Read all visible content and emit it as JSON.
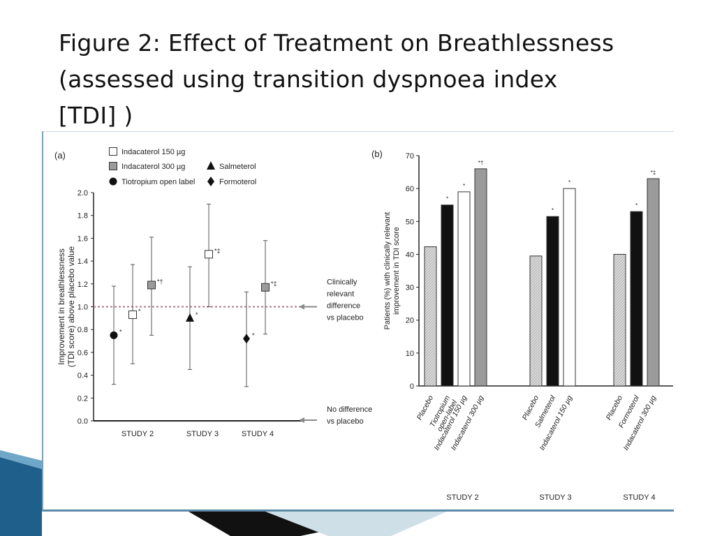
{
  "title_lines": [
    "Figure 2: Effect of Treatment on Breathlessness",
    "(assessed using transition dyspnoea index",
    "[TDI] )"
  ],
  "colors": {
    "open_marker": "#ffffff",
    "grey_marker": "#9b9b9b",
    "black": "#111111",
    "placebo_fill": "#d9d9d9",
    "reference_line": "#b07a8a",
    "arrow": "#8a8a8a",
    "accent_blue": "#1f5f8b"
  },
  "chart_data": [
    {
      "type": "scatter",
      "panel_label": "(a)",
      "ylabel": "Improvement in breathlessness (TDI score) above placebo value",
      "ylim": [
        0,
        2.0
      ],
      "yticks": [
        "2.0",
        "1.8",
        "1.6",
        "1.4",
        "1.2",
        "1.0",
        "0.8",
        "0.6",
        "0.4",
        "0.2",
        "0.0"
      ],
      "categories": [
        "STUDY 2",
        "STUDY 3",
        "STUDY 4"
      ],
      "legend": [
        {
          "label": "Indacaterol 150 µg",
          "marker": "open-square"
        },
        {
          "label": "Indacaterol 300 µg",
          "marker": "grey-square"
        },
        {
          "label": "Salmeterol",
          "marker": "triangle"
        },
        {
          "label": "Tiotropium open label",
          "marker": "circle"
        },
        {
          "label": "Formoterol",
          "marker": "diamond"
        }
      ],
      "points": [
        {
          "study": "STUDY 2",
          "series": "Tiotropium open label",
          "marker": "circle",
          "offset": -1,
          "value": 0.75,
          "low": 0.32,
          "high": 1.18,
          "annotation": "*"
        },
        {
          "study": "STUDY 2",
          "series": "Indacaterol 150 µg",
          "marker": "open-square",
          "offset": 0,
          "value": 0.93,
          "low": 0.5,
          "high": 1.37,
          "annotation": "*"
        },
        {
          "study": "STUDY 2",
          "series": "Indacaterol 300 µg",
          "marker": "grey-square",
          "offset": 1,
          "value": 1.19,
          "low": 0.75,
          "high": 1.61,
          "annotation": "*†"
        },
        {
          "study": "STUDY 3",
          "series": "Salmeterol",
          "marker": "triangle",
          "offset": -1,
          "value": 0.9,
          "low": 0.45,
          "high": 1.35,
          "annotation": "*"
        },
        {
          "study": "STUDY 3",
          "series": "Indacaterol 150 µg",
          "marker": "open-square",
          "offset": 0,
          "value": 1.46,
          "low": 1.0,
          "high": 1.9,
          "annotation": "*‡"
        },
        {
          "study": "STUDY 4",
          "series": "Formoterol",
          "marker": "diamond",
          "offset": -1,
          "value": 0.72,
          "low": 0.3,
          "high": 1.13,
          "annotation": "*"
        },
        {
          "study": "STUDY 4",
          "series": "Indacaterol 300 µg",
          "marker": "grey-square",
          "offset": 0,
          "value": 1.17,
          "low": 0.76,
          "high": 1.58,
          "annotation": "*‡"
        }
      ],
      "reference_lines": [
        {
          "value": 1.0,
          "label_lines": [
            "Clinically",
            "relevant",
            "difference",
            "vs placebo"
          ]
        },
        {
          "value": 0.0,
          "label_lines": [
            "No difference",
            "vs placebo"
          ]
        }
      ]
    },
    {
      "type": "bar",
      "panel_label": "(b)",
      "ylabel": "Patients (%) with clinically relevant improvement in TDI score",
      "ylim": [
        0,
        70
      ],
      "yticks": [
        "70",
        "60",
        "50",
        "40",
        "30",
        "20",
        "10",
        "0"
      ],
      "groups": [
        {
          "study": "STUDY 2",
          "bars": [
            {
              "label": "Placebo",
              "value": 42.3,
              "fill": "placebo",
              "annotation": ""
            },
            {
              "label": "Tiotropium open-label",
              "label_lines": [
                "Tiotropium",
                "open-label"
              ],
              "value": 55,
              "fill": "black",
              "annotation": "*"
            },
            {
              "label": "Indacaterol 150 µg",
              "value": 59,
              "fill": "white",
              "annotation": "*"
            },
            {
              "label": "Indacaterol 300 µg",
              "value": 66,
              "fill": "grey",
              "annotation": "*†"
            }
          ]
        },
        {
          "study": "STUDY 3",
          "bars": [
            {
              "label": "Placebo",
              "value": 39.5,
              "fill": "placebo",
              "annotation": ""
            },
            {
              "label": "Salmeterol",
              "value": 51.5,
              "fill": "black",
              "annotation": "*"
            },
            {
              "label": "Indacaterol 150 µg",
              "value": 60,
              "fill": "white",
              "annotation": "*"
            }
          ]
        },
        {
          "study": "STUDY 4",
          "bars": [
            {
              "label": "Placebo",
              "value": 40,
              "fill": "placebo",
              "annotation": ""
            },
            {
              "label": "Formoterol",
              "value": 53,
              "fill": "black",
              "annotation": "*"
            },
            {
              "label": "Indacaterol 300 µg",
              "value": 63,
              "fill": "grey",
              "annotation": "*‡"
            }
          ]
        }
      ]
    }
  ]
}
